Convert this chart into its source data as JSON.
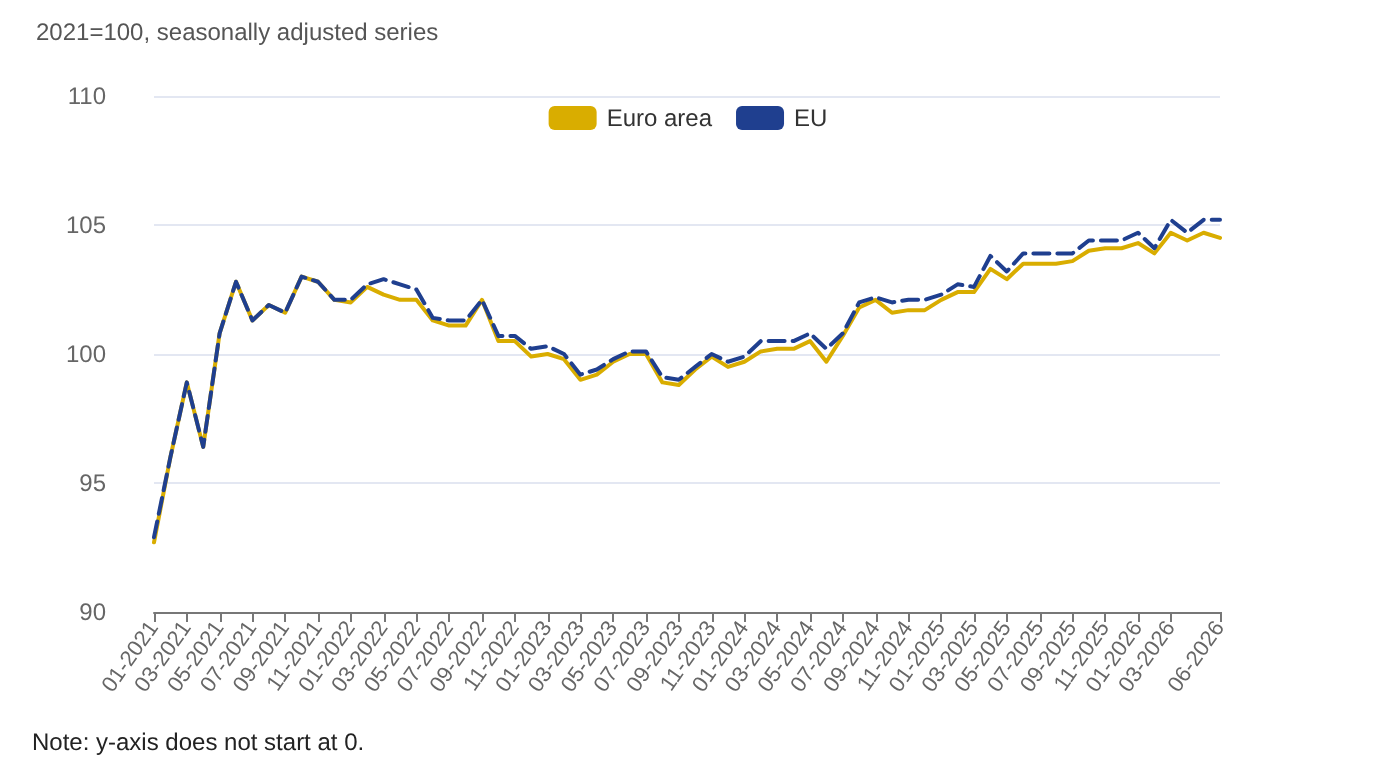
{
  "chart_data": {
    "type": "line",
    "title": "2021=100, seasonally adjusted series",
    "categories": [
      "01-2021",
      null,
      "03-2021",
      null,
      "05-2021",
      null,
      "07-2021",
      null,
      "09-2021",
      null,
      "11-2021",
      null,
      "01-2022",
      null,
      "03-2022",
      null,
      "05-2022",
      null,
      "07-2022",
      null,
      "09-2022",
      null,
      "11-2022",
      null,
      "01-2023",
      null,
      "03-2023",
      null,
      "05-2023",
      null,
      "07-2023",
      null,
      "09-2023",
      null,
      "11-2023",
      null,
      "01-2024",
      null,
      "03-2024",
      null,
      "05-2024",
      null,
      "07-2024",
      null,
      "09-2024",
      null,
      "11-2024",
      null,
      "01-2025",
      null,
      "03-2025",
      null,
      "05-2025",
      null,
      "07-2025",
      null,
      "09-2025",
      null,
      "11-2025",
      null,
      "01-2026",
      null,
      "03-2026",
      null,
      null,
      "06-2026"
    ],
    "series": [
      {
        "name": "Euro area",
        "color": "#d9ad00",
        "line_style": "solid",
        "values": [
          92.7,
          96.0,
          98.9,
          96.4,
          100.8,
          102.8,
          101.3,
          101.9,
          101.6,
          103.0,
          102.8,
          102.1,
          102.0,
          102.6,
          102.3,
          102.1,
          102.1,
          101.3,
          101.1,
          101.1,
          102.1,
          100.5,
          100.5,
          99.9,
          100.0,
          99.8,
          99.0,
          99.2,
          99.7,
          100.0,
          100.0,
          98.9,
          98.8,
          99.4,
          99.9,
          99.5,
          99.7,
          100.1,
          100.2,
          100.2,
          100.5,
          99.7,
          100.7,
          101.8,
          102.1,
          101.6,
          101.7,
          101.7,
          102.1,
          102.4,
          102.4,
          103.3,
          102.9,
          103.5,
          103.5,
          103.5,
          103.6,
          104.0,
          104.1,
          104.1,
          104.3,
          103.9,
          104.7,
          104.4,
          104.7,
          104.5
        ]
      },
      {
        "name": "EU",
        "color": "#1f3f8f",
        "line_style": "dashed",
        "values": [
          92.9,
          96.0,
          98.9,
          96.4,
          100.8,
          102.8,
          101.3,
          101.9,
          101.6,
          103.0,
          102.8,
          102.1,
          102.1,
          102.7,
          102.9,
          102.7,
          102.5,
          101.4,
          101.3,
          101.3,
          102.1,
          100.7,
          100.7,
          100.2,
          100.3,
          100.0,
          99.2,
          99.4,
          99.8,
          100.1,
          100.1,
          99.1,
          99.0,
          99.5,
          100.0,
          99.7,
          99.9,
          100.5,
          100.5,
          100.5,
          100.8,
          100.2,
          100.8,
          102.0,
          102.2,
          102.0,
          102.1,
          102.1,
          102.3,
          102.7,
          102.6,
          103.8,
          103.2,
          103.9,
          103.9,
          103.9,
          103.9,
          104.4,
          104.4,
          104.4,
          104.7,
          104.1,
          105.2,
          104.7,
          105.2,
          105.2
        ]
      }
    ],
    "ylim": [
      90,
      110
    ],
    "yticks": [
      90,
      95,
      100,
      105,
      110
    ],
    "grid": "y",
    "legend": "top",
    "marker": "none",
    "annotations": [
      "Note: y-axis does not start at 0."
    ]
  }
}
